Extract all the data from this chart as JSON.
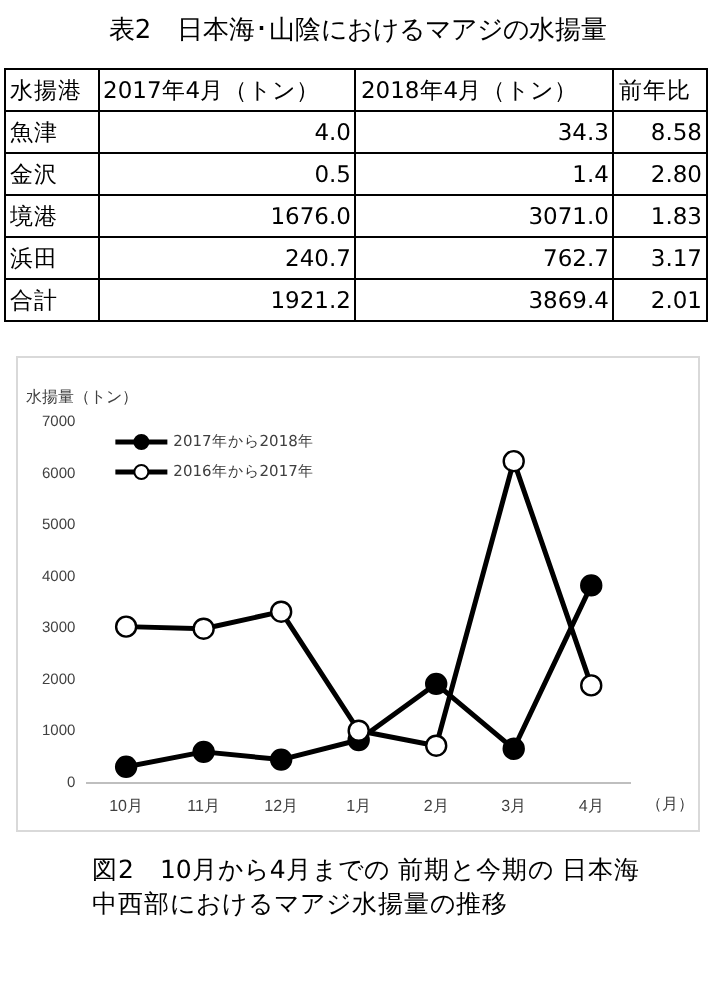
{
  "chart_data": [
    {
      "type": "other",
      "title": "表2　日本海･山陰におけるマアジの水揚量",
      "ylabel": "水揚港",
      "categories": [
        "2017年4月（トン）",
        "2018年4月（トン）",
        "前年比"
      ],
      "y_categories": [
        "魚津",
        "金沢",
        "境港",
        "浜田",
        "合計"
      ],
      "cell_labels": [
        [
          "4.0",
          "34.3",
          "8.58"
        ],
        [
          "0.5",
          "1.4",
          "2.80"
        ],
        [
          "1676.0",
          "3071.0",
          "1.83"
        ],
        [
          "240.7",
          "762.7",
          "3.17"
        ],
        [
          "1921.2",
          "3869.4",
          "2.01"
        ]
      ]
    },
    {
      "type": "line",
      "title": "図2　10月から4月までの 前期と今期の 日本海中西部におけるマアジ水揚量の推移",
      "ylabel": "水揚量（トン）",
      "xlabel": "（月）",
      "categories": [
        "10月",
        "11月",
        "12月",
        "1月",
        "2月",
        "3月",
        "4月"
      ],
      "series": [
        {
          "name": "2017年から2018年",
          "color": "#000000",
          "values": [
            310,
            600,
            450,
            830,
            1920,
            660,
            3830
          ]
        },
        {
          "name": "2016年から2017年",
          "color": "#000000",
          "values": [
            3030,
            2990,
            3320,
            1010,
            720,
            6240,
            1890
          ]
        }
      ],
      "ylim": [
        0,
        7000
      ],
      "yticks": [
        0,
        1000,
        2000,
        3000,
        4000,
        5000,
        6000,
        7000
      ],
      "grid": false,
      "legend": "top left",
      "marker": "circle",
      "line_style": "solid"
    }
  ]
}
